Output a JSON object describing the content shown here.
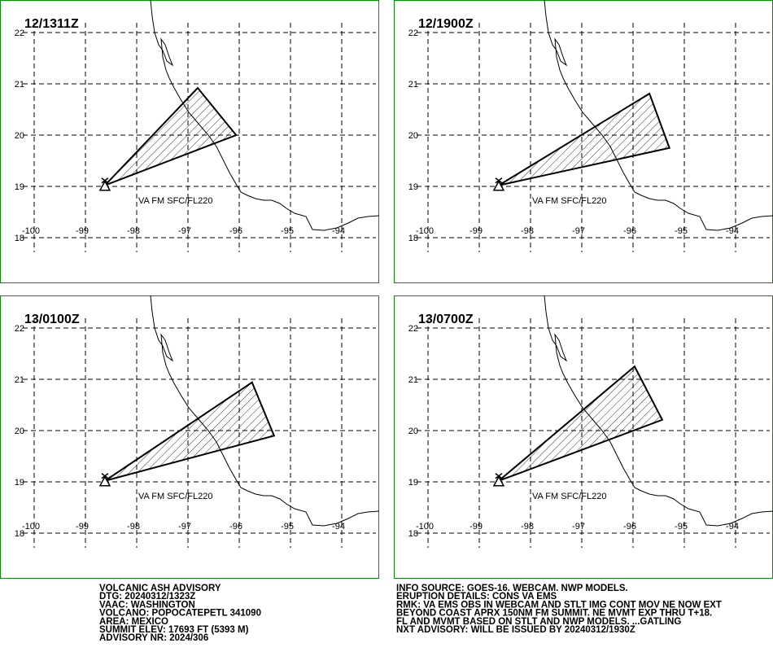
{
  "panels": [
    {
      "time": "12/1311Z",
      "layer_label": "VA FM SFC/FL220"
    },
    {
      "time": "12/1900Z",
      "layer_label": "VA FM SFC/FL220"
    },
    {
      "time": "13/0100Z",
      "layer_label": "VA FM SFC/FL220"
    },
    {
      "time": "13/0700Z",
      "layer_label": "VA FM SFC/FL220"
    }
  ],
  "grid": {
    "lon_labels": [
      "-100",
      "-99",
      "-98",
      "-97",
      "-96",
      "-95",
      "-94"
    ],
    "lat_labels": [
      "22",
      "21",
      "20",
      "19",
      "18"
    ]
  },
  "advisory": {
    "left": [
      "VOLCANIC ASH ADVISORY",
      "DTG: 20240312/1323Z",
      "VAAC: WASHINGTON",
      "VOLCANO: POPOCATEPETL 341090",
      "AREA: MEXICO",
      "SUMMIT ELEV: 17693 FT (5393 M)",
      "ADVISORY NR: 2024/306"
    ],
    "right": [
      "INFO SOURCE: GOES-16. WEBCAM. NWP MODELS.",
      "ERUPTION DETAILS: CONS VA EMS",
      "RMK: VA EMS OBS IN WEBCAM AND STLT IMG CONT MOV NE NOW EXT",
      "BEYOND COAST APRX 150NM FM SUMMIT. NE MVMT EXP THRU T+18.",
      "FL AND MVMT BASED ON STLT AND NWP MODELS. ...GATLING",
      "NXT ADVISORY: WILL BE ISSUED BY 20240312/1930Z"
    ]
  }
}
